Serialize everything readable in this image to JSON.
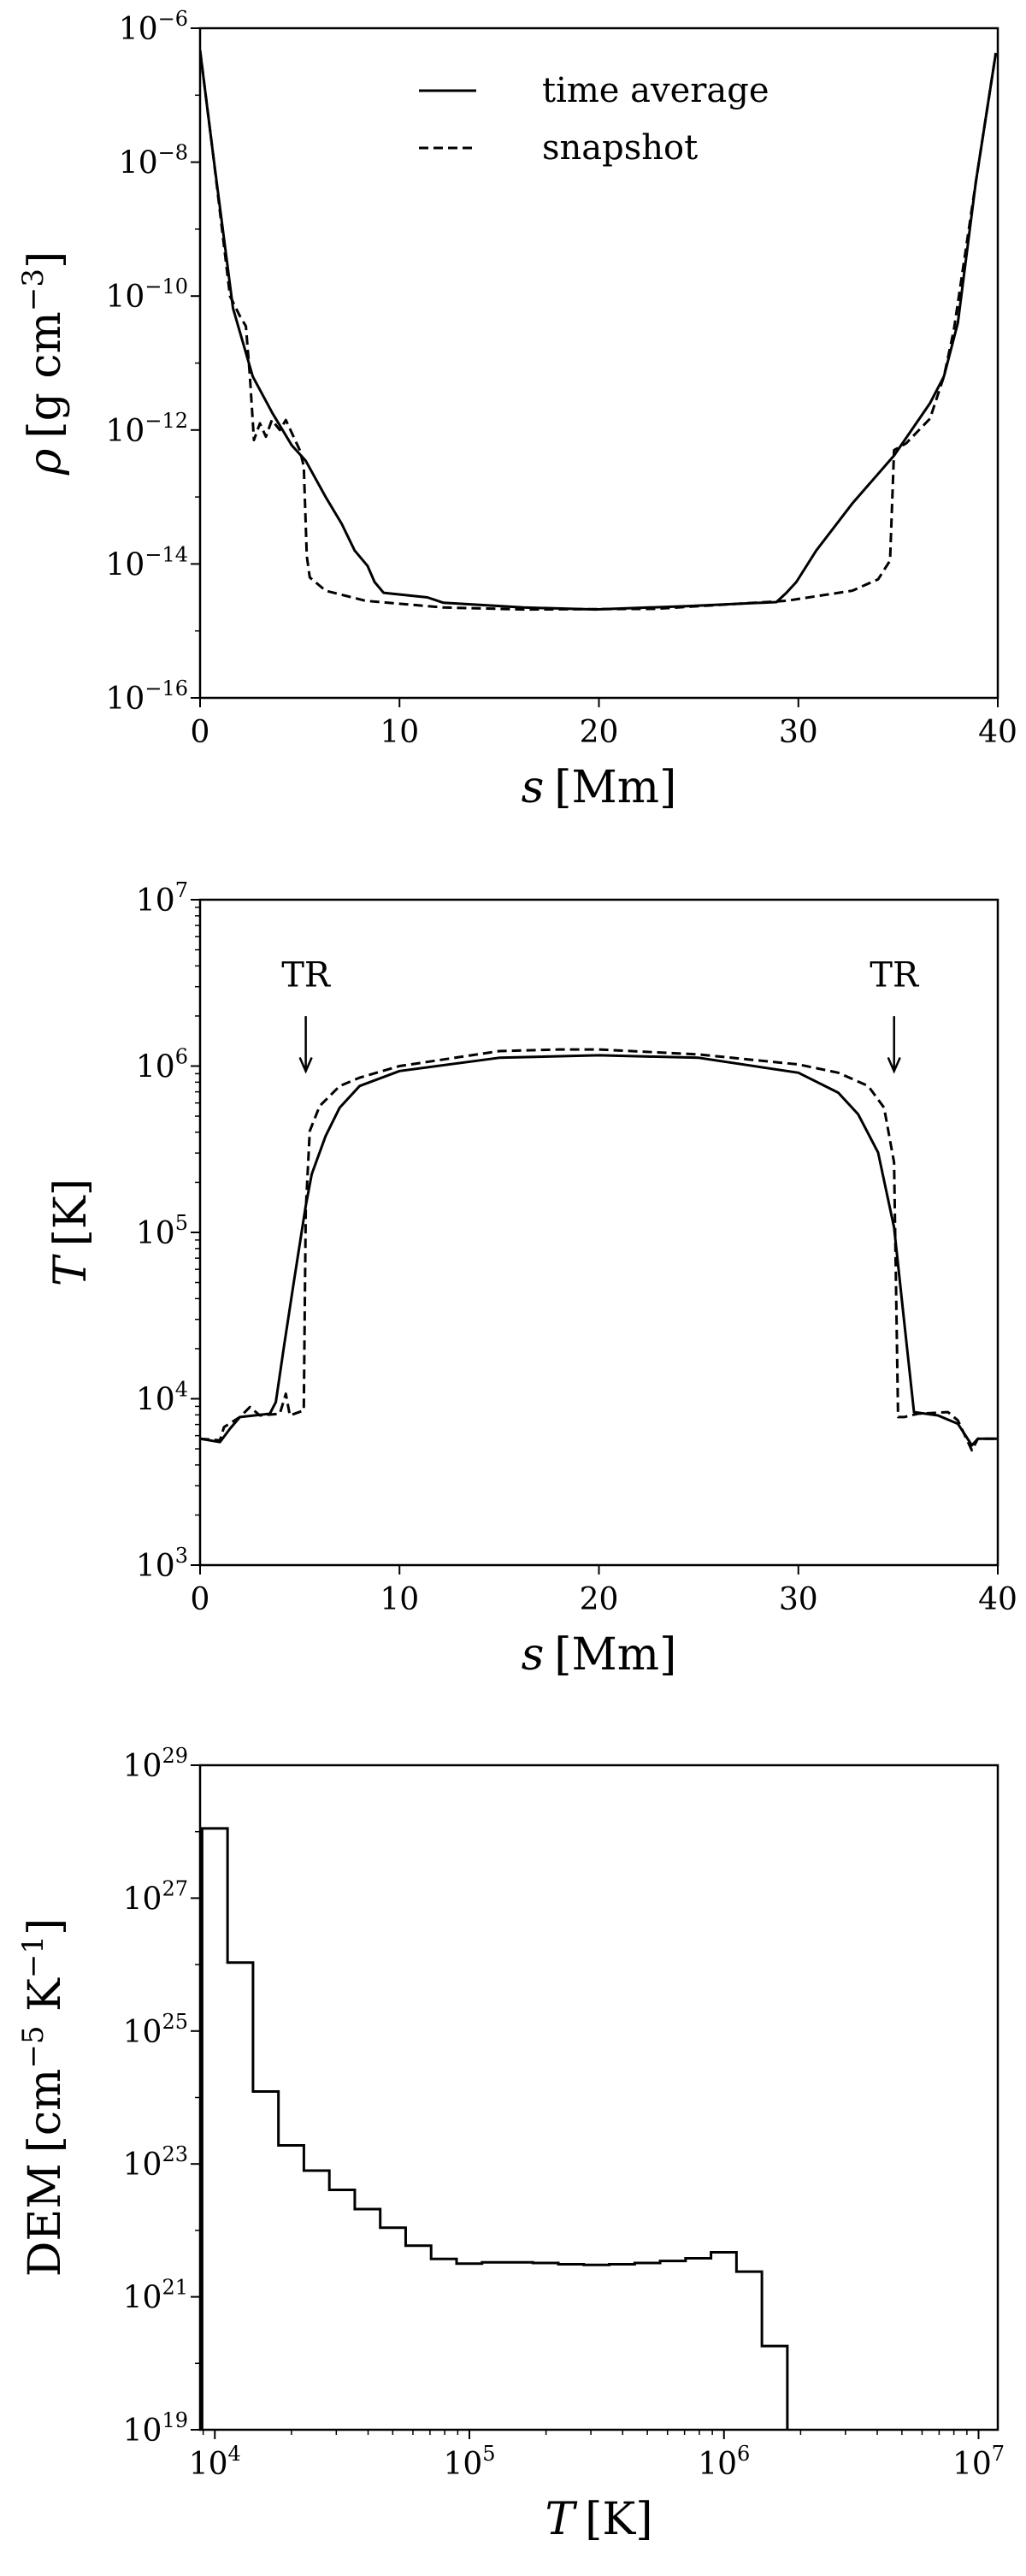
{
  "chart_data": [
    {
      "type": "line",
      "xlabel": {
        "var": "s",
        "unit": "[Mm]"
      },
      "ylabel": {
        "var": "ρ",
        "unit": "[g cm",
        "exp": "−3",
        "close": "]"
      },
      "xlim": [
        0,
        40
      ],
      "ylim": [
        1e-16,
        1e-06
      ],
      "yscale": "log",
      "xticks": [
        "0",
        "10",
        "20",
        "30",
        "40"
      ],
      "yticks": [
        {
          "base": "10",
          "exp": "−16"
        },
        {
          "base": "10",
          "exp": "−14"
        },
        {
          "base": "10",
          "exp": "−12"
        },
        {
          "base": "10",
          "exp": "−10"
        },
        {
          "base": "10",
          "exp": "−8"
        },
        {
          "base": "10",
          "exp": "−6"
        }
      ],
      "legend": {
        "placement": "top-center",
        "entries": [
          "time average",
          "snapshot"
        ]
      },
      "series": [
        {
          "name": "time average",
          "style": "solid",
          "points_log10_y": [
            [
              0,
              -6.33
            ],
            [
              0.66,
              -7.9
            ],
            [
              1.65,
              -10.18
            ],
            [
              2.64,
              -11.2
            ],
            [
              3.63,
              -11.75
            ],
            [
              4.6,
              -12.23
            ],
            [
              5.3,
              -12.46
            ],
            [
              6.3,
              -13.0
            ],
            [
              7.1,
              -13.4
            ],
            [
              7.75,
              -13.8
            ],
            [
              8.4,
              -14.03
            ],
            [
              8.75,
              -14.27
            ],
            [
              9.2,
              -14.43
            ],
            [
              11.4,
              -14.5
            ],
            [
              12.2,
              -14.58
            ],
            [
              16.2,
              -14.65
            ],
            [
              19.8,
              -14.68
            ],
            [
              24.4,
              -14.63
            ],
            [
              28.9,
              -14.57
            ],
            [
              29.4,
              -14.43
            ],
            [
              29.9,
              -14.27
            ],
            [
              30.9,
              -13.8
            ],
            [
              32.7,
              -13.1
            ],
            [
              34.8,
              -12.38
            ],
            [
              36.6,
              -11.6
            ],
            [
              37.3,
              -11.2
            ],
            [
              38.0,
              -10.4
            ],
            [
              38.9,
              -8.3
            ],
            [
              39.9,
              -6.37
            ]
          ]
        },
        {
          "name": "snapshot",
          "style": "dashed",
          "points_log10_y": [
            [
              0,
              -6.33
            ],
            [
              0.66,
              -7.9
            ],
            [
              1.5,
              -10.0
            ],
            [
              2.0,
              -10.3
            ],
            [
              2.3,
              -10.45
            ],
            [
              2.5,
              -11.2
            ],
            [
              2.7,
              -12.15
            ],
            [
              3.0,
              -11.9
            ],
            [
              3.3,
              -12.1
            ],
            [
              3.6,
              -11.85
            ],
            [
              4.0,
              -12.0
            ],
            [
              4.3,
              -11.85
            ],
            [
              5.0,
              -12.3
            ],
            [
              5.2,
              -12.54
            ],
            [
              5.35,
              -13.88
            ],
            [
              5.5,
              -14.2
            ],
            [
              6.3,
              -14.4
            ],
            [
              8.3,
              -14.55
            ],
            [
              12.2,
              -14.65
            ],
            [
              16.2,
              -14.68
            ],
            [
              22.8,
              -14.67
            ],
            [
              29.4,
              -14.55
            ],
            [
              32.7,
              -14.4
            ],
            [
              34.0,
              -14.23
            ],
            [
              34.6,
              -13.95
            ],
            [
              34.8,
              -12.3
            ],
            [
              35.4,
              -12.2
            ],
            [
              36.6,
              -11.83
            ],
            [
              37.3,
              -11.2
            ],
            [
              37.8,
              -10.5
            ],
            [
              38.9,
              -8.3
            ],
            [
              39.9,
              -6.37
            ]
          ]
        }
      ]
    },
    {
      "type": "line",
      "xlabel": {
        "var": "s",
        "unit": "[Mm]"
      },
      "ylabel": {
        "var": "T",
        "unit": "[K]"
      },
      "xlim": [
        0,
        40
      ],
      "ylim": [
        1000.0,
        10000000.0
      ],
      "yscale": "log",
      "xticks": [
        "0",
        "10",
        "20",
        "30",
        "40"
      ],
      "yticks": [
        {
          "base": "10",
          "exp": "3"
        },
        {
          "base": "10",
          "exp": "4"
        },
        {
          "base": "10",
          "exp": "5"
        },
        {
          "base": "10",
          "exp": "6"
        },
        {
          "base": "10",
          "exp": "7"
        }
      ],
      "annotations": [
        {
          "text": "TR",
          "x": 5.3,
          "arrow_from_log10_y": 6.3,
          "arrow_to_log10_y": 6.0
        },
        {
          "text": "TR",
          "x": 34.8,
          "arrow_from_log10_y": 6.3,
          "arrow_to_log10_y": 6.0
        }
      ],
      "series": [
        {
          "name": "time average",
          "style": "solid",
          "points_log10_y": [
            [
              0,
              3.76
            ],
            [
              1,
              3.74
            ],
            [
              1.5,
              3.82
            ],
            [
              2,
              3.89
            ],
            [
              3.5,
              3.91
            ],
            [
              3.8,
              3.98
            ],
            [
              4.2,
              4.31
            ],
            [
              4.7,
              4.7
            ],
            [
              5.3,
              5.16
            ],
            [
              5.6,
              5.35
            ],
            [
              6.3,
              5.58
            ],
            [
              7,
              5.75
            ],
            [
              8,
              5.88
            ],
            [
              10,
              5.97
            ],
            [
              15,
              6.05
            ],
            [
              20,
              6.065
            ],
            [
              25,
              6.05
            ],
            [
              30,
              5.96
            ],
            [
              32,
              5.84
            ],
            [
              33,
              5.71
            ],
            [
              34,
              5.48
            ],
            [
              34.8,
              5.03
            ],
            [
              35.3,
              4.47
            ],
            [
              35.8,
              3.92
            ],
            [
              37,
              3.9
            ],
            [
              38,
              3.85
            ],
            [
              38.7,
              3.72
            ],
            [
              39,
              3.76
            ],
            [
              40,
              3.76
            ]
          ]
        },
        {
          "name": "snapshot",
          "style": "dashed",
          "points_log10_y": [
            [
              0,
              3.76
            ],
            [
              1,
              3.75
            ],
            [
              1.2,
              3.83
            ],
            [
              2,
              3.89
            ],
            [
              2.5,
              3.95
            ],
            [
              3,
              3.9
            ],
            [
              4,
              3.91
            ],
            [
              4.3,
              4.03
            ],
            [
              4.5,
              3.9
            ],
            [
              5.2,
              3.93
            ],
            [
              5.3,
              5.13
            ],
            [
              5.5,
              5.61
            ],
            [
              6,
              5.76
            ],
            [
              7,
              5.88
            ],
            [
              8,
              5.93
            ],
            [
              10,
              6.0
            ],
            [
              15,
              6.09
            ],
            [
              18,
              6.1
            ],
            [
              20,
              6.1
            ],
            [
              25,
              6.07
            ],
            [
              30,
              6.01
            ],
            [
              32,
              5.96
            ],
            [
              33.5,
              5.88
            ],
            [
              34.3,
              5.75
            ],
            [
              34.8,
              5.42
            ],
            [
              35,
              3.89
            ],
            [
              35.3,
              3.89
            ],
            [
              36,
              3.91
            ],
            [
              37.5,
              3.92
            ],
            [
              38,
              3.87
            ],
            [
              38.7,
              3.69
            ],
            [
              39,
              3.76
            ],
            [
              40,
              3.76
            ]
          ]
        }
      ]
    },
    {
      "type": "step",
      "xlabel": {
        "var": "T",
        "unit": "[K]"
      },
      "ylabel": {
        "var": "DEM",
        "unit": "[cm",
        "exp": "−5",
        "unit2": " K",
        "exp2": "−1",
        "close": "]"
      },
      "xscale": "log",
      "yscale": "log",
      "xlim": [
        8750,
        11900000
      ],
      "ylim": [
        1e+19,
        1e+29
      ],
      "xticks": [
        {
          "base": "10",
          "exp": "4"
        },
        {
          "base": "10",
          "exp": "5"
        },
        {
          "base": "10",
          "exp": "6"
        },
        {
          "base": "10",
          "exp": "7"
        }
      ],
      "yticks": [
        {
          "base": "10",
          "exp": "19"
        },
        {
          "base": "10",
          "exp": "21"
        },
        {
          "base": "10",
          "exp": "23"
        },
        {
          "base": "10",
          "exp": "25"
        },
        {
          "base": "10",
          "exp": "27"
        },
        {
          "base": "10",
          "exp": "29"
        }
      ],
      "bin_edges_log10_T": [
        3.95,
        4.05,
        4.15,
        4.25,
        4.35,
        4.45,
        4.55,
        4.65,
        4.75,
        4.85,
        4.95,
        5.05,
        5.15,
        5.25,
        5.35,
        5.45,
        5.55,
        5.65,
        5.75,
        5.85,
        5.95,
        6.05,
        6.15,
        6.25
      ],
      "values_log10_DEM": [
        28.05,
        26.03,
        24.09,
        23.28,
        22.9,
        22.61,
        22.32,
        22.04,
        21.77,
        21.57,
        21.5,
        21.52,
        21.52,
        21.51,
        21.49,
        21.48,
        21.49,
        21.51,
        21.54,
        21.58,
        21.67,
        21.38,
        20.26
      ]
    }
  ]
}
